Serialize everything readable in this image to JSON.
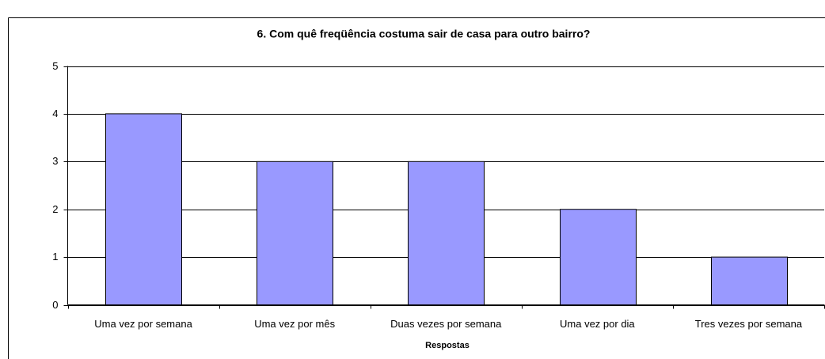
{
  "chart_data": {
    "type": "bar",
    "title": "6. Com quê freqüência costuma sair de casa para outro bairro?",
    "x_label": "Respostas",
    "categories": [
      "Uma vez por semana",
      "Uma vez por mês",
      "Duas vezes por semana",
      "Uma vez por dia",
      "Tres vezes por semana"
    ],
    "values": [
      4,
      3,
      3,
      2,
      1
    ],
    "color": "#9999ff",
    "ylim": [
      0,
      5
    ],
    "yticks": [
      0,
      1,
      2,
      3,
      4,
      5
    ],
    "grid": true
  }
}
